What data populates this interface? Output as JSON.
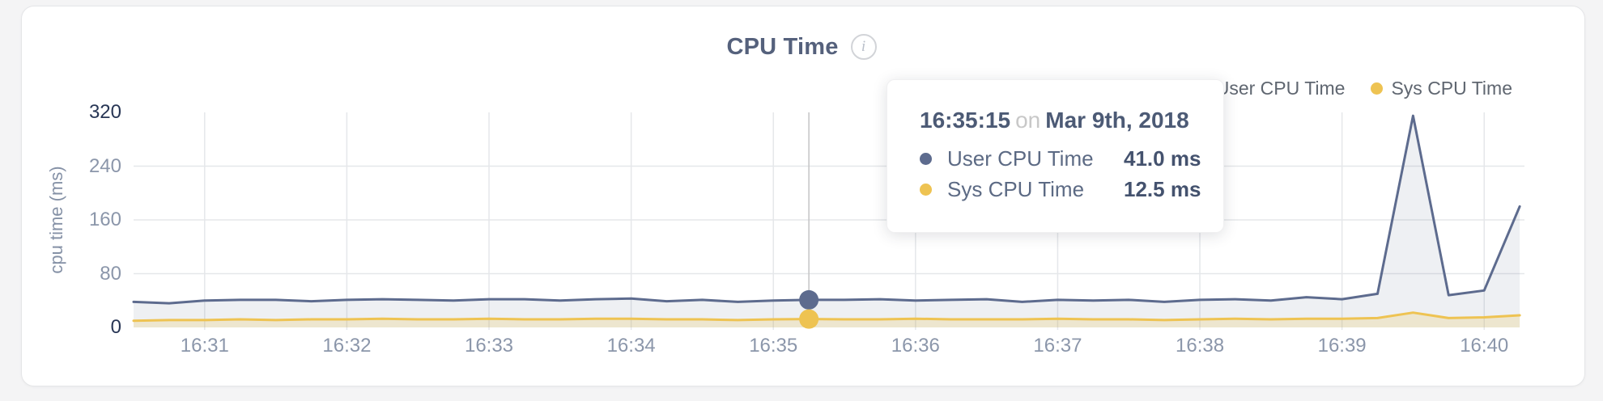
{
  "colors": {
    "page_bg": "#f4f4f5",
    "card_bg": "#ffffff",
    "grid": "#e5e7ea",
    "hover_line": "#c4c4c6",
    "user_line": "#5d6b8e",
    "user_fill": "rgba(93,107,142,0.10)",
    "sys_line": "#eec352",
    "sys_fill": "rgba(238,195,82,0.22)"
  },
  "header": {
    "title": "CPU Time",
    "info_icon": "i"
  },
  "legend": [
    {
      "label": "User CPU Time",
      "color": "#5d6b8e"
    },
    {
      "label": "Sys CPU Time",
      "color": "#eec352"
    }
  ],
  "chart_data": {
    "type": "area",
    "title": "CPU Time",
    "xlabel": "",
    "ylabel": "cpu time (ms)",
    "ylim": [
      0,
      320
    ],
    "yticks": [
      0,
      80,
      160,
      240,
      320
    ],
    "grid": true,
    "legend_position": "top-right",
    "x_unit": "seconds after 16:30:00 on Mar 9th, 2018",
    "xlim": [
      30,
      617
    ],
    "xticks": [
      60,
      120,
      180,
      240,
      300,
      360,
      420,
      480,
      540,
      600
    ],
    "xtick_labels": [
      "16:31",
      "16:32",
      "16:33",
      "16:34",
      "16:35",
      "16:36",
      "16:37",
      "16:38",
      "16:39",
      "16:40"
    ],
    "x": [
      30,
      45,
      60,
      75,
      90,
      105,
      120,
      135,
      150,
      165,
      180,
      195,
      210,
      225,
      240,
      255,
      270,
      285,
      300,
      315,
      330,
      345,
      360,
      375,
      390,
      405,
      420,
      435,
      450,
      465,
      480,
      495,
      510,
      525,
      540,
      555,
      570,
      585,
      600,
      615
    ],
    "series": [
      {
        "name": "User CPU Time",
        "values": [
          38,
          36,
          40,
          41,
          41,
          39,
          41,
          42,
          41,
          40,
          42,
          42,
          40,
          42,
          43,
          39,
          41,
          38,
          40,
          41,
          41,
          42,
          40,
          41,
          42,
          38,
          41,
          40,
          41,
          38,
          41,
          42,
          40,
          45,
          42,
          50,
          315,
          48,
          55,
          180
        ]
      },
      {
        "name": "Sys CPU Time",
        "values": [
          10,
          11,
          11,
          12,
          11,
          12,
          12,
          13,
          12,
          12,
          13,
          12,
          12,
          13,
          13,
          12,
          12,
          11,
          12,
          12.5,
          12,
          12,
          13,
          12,
          12,
          12,
          13,
          12,
          12,
          11,
          12,
          13,
          12,
          13,
          13,
          14,
          22,
          14,
          15,
          18
        ]
      }
    ]
  },
  "tooltip": {
    "time": "16:35:15",
    "conjunction": "on",
    "date": "Mar 9th, 2018",
    "hover_index": 19,
    "rows": [
      {
        "label": "User CPU Time",
        "value": "41.0 ms"
      },
      {
        "label": "Sys CPU Time",
        "value": "12.5 ms"
      }
    ]
  }
}
